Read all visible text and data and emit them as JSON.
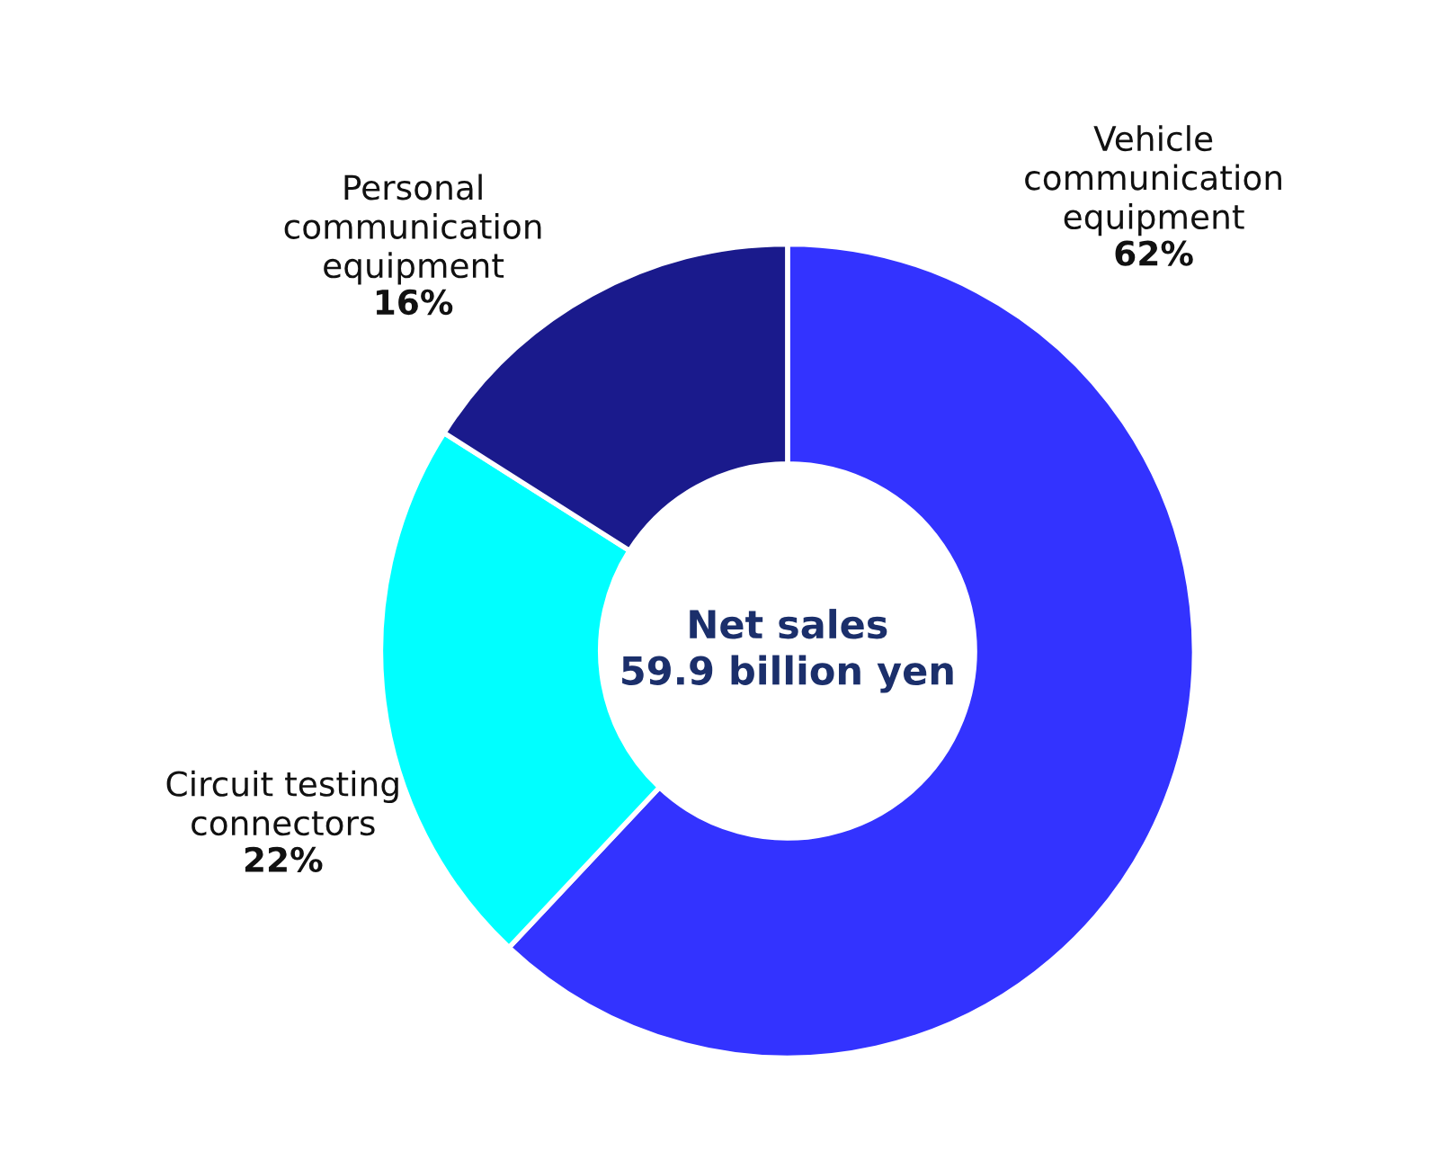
{
  "chart_data": {
    "type": "donut",
    "title": "Net sales\n59.9 billion yen",
    "categories": [
      "Vehicle\ncommunication\nequipment",
      "Circuit testing\nconnectors",
      "Personal\ncommunication\nequipment"
    ],
    "values": [
      62,
      22,
      16
    ],
    "colors": [
      "#3333ff",
      "#00ffff",
      "#1a1a8c"
    ],
    "value_labels": [
      "62%",
      "22%",
      "16%"
    ],
    "legend": false
  }
}
